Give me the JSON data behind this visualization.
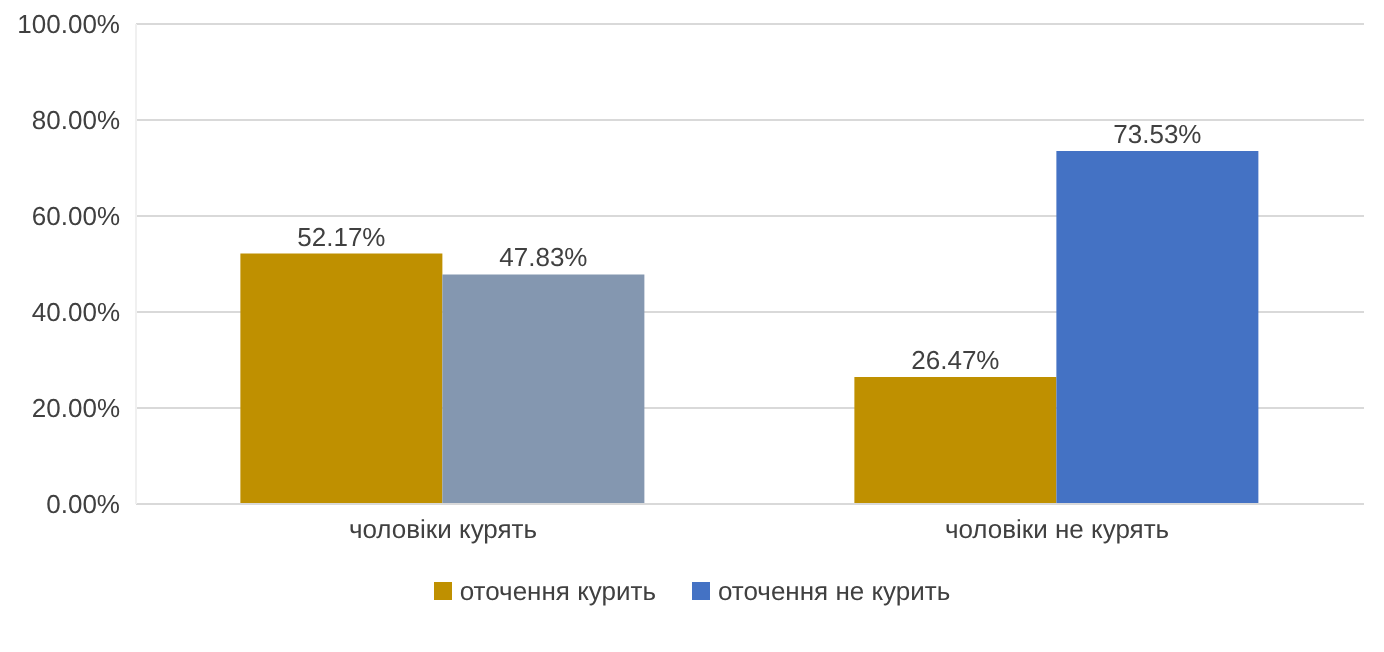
{
  "chart_data": {
    "type": "bar",
    "categories": [
      "чоловіки курять",
      "чоловіки не курять"
    ],
    "series": [
      {
        "name": "оточення курить",
        "color": "#bf9000",
        "values": [
          52.17,
          26.47
        ],
        "value_labels": [
          "52.17%",
          "26.47%"
        ]
      },
      {
        "name": "оточення не курить",
        "color": "#4472c4",
        "colors": [
          "#8497b0",
          "#4472c4"
        ],
        "values": [
          47.83,
          73.53
        ],
        "value_labels": [
          "47.83%",
          "73.53%"
        ]
      }
    ],
    "ylim": [
      0,
      100
    ],
    "yticks": [
      {
        "value": 0,
        "label": "0.00%"
      },
      {
        "value": 20,
        "label": "20.00%"
      },
      {
        "value": 40,
        "label": "40.00%"
      },
      {
        "value": 60,
        "label": "60.00%"
      },
      {
        "value": 80,
        "label": "80.00%"
      },
      {
        "value": 100,
        "label": "100.00%"
      }
    ],
    "grid": "y",
    "legend": "bottom"
  }
}
